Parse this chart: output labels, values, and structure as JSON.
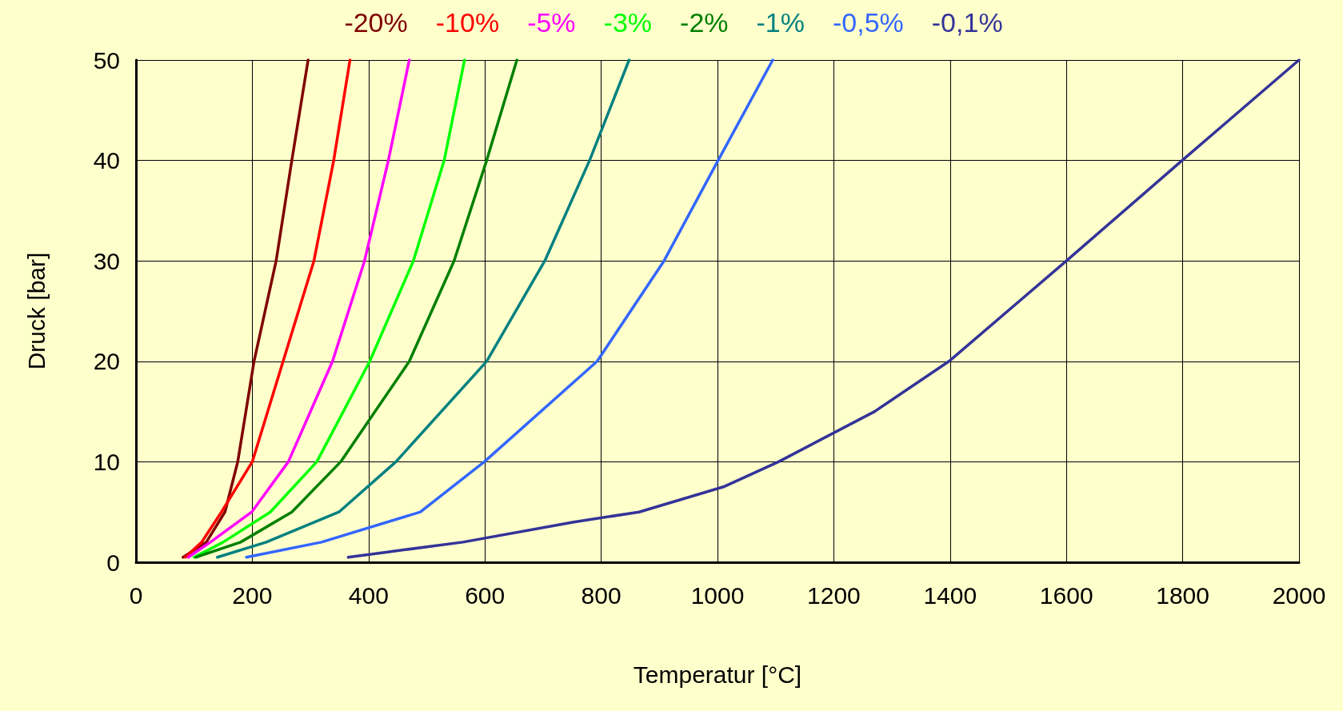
{
  "chart_data": {
    "type": "line",
    "xlabel": "Temperatur [°C]",
    "ylabel": "Druck [bar]",
    "xlim": [
      0,
      2000
    ],
    "xticks": [
      0,
      200,
      400,
      600,
      800,
      1000,
      1200,
      1400,
      1600,
      1800,
      2000
    ],
    "ylim": [
      0,
      50
    ],
    "yticks": [
      0,
      10,
      20,
      30,
      40,
      50
    ],
    "grid": true,
    "legend": "top",
    "marker": "none",
    "line_style": "solid",
    "series": [
      {
        "name": "-20%",
        "color": "#800000",
        "x": [
          81,
          121,
          153,
          175,
          203,
          241,
          268,
          296
        ],
        "values": [
          0.5,
          2,
          5,
          10,
          20,
          30,
          40,
          50
        ]
      },
      {
        "name": "-10%",
        "color": "#ff0000",
        "x": [
          85,
          113,
          147,
          200,
          253,
          306,
          340,
          368
        ],
        "values": [
          0.5,
          2,
          5,
          10,
          20,
          30,
          40,
          50
        ]
      },
      {
        "name": "-5%",
        "color": "#ff00ff",
        "x": [
          90,
          128,
          199,
          262,
          338,
          393,
          434,
          470
        ],
        "values": [
          0.5,
          2,
          5,
          10,
          20,
          30,
          40,
          50
        ]
      },
      {
        "name": "-3%",
        "color": "#00ff00",
        "x": [
          100,
          150,
          231,
          311,
          402,
          477,
          530,
          565
        ],
        "values": [
          0.5,
          2,
          5,
          10,
          20,
          30,
          40,
          50
        ]
      },
      {
        "name": "-2%",
        "color": "#008000",
        "x": [
          103,
          180,
          268,
          352,
          470,
          547,
          603,
          655
        ],
        "values": [
          0.5,
          2,
          5,
          10,
          20,
          30,
          40,
          50
        ]
      },
      {
        "name": "-1%",
        "color": "#008080",
        "x": [
          140,
          224,
          349,
          447,
          603,
          703,
          780,
          848
        ],
        "values": [
          0.5,
          2,
          5,
          10,
          20,
          30,
          40,
          50
        ]
      },
      {
        "name": "-0,5%",
        "color": "#3366ff",
        "x": [
          190,
          319,
          489,
          599,
          793,
          908,
          1001,
          1095
        ],
        "values": [
          0.5,
          2,
          5,
          10,
          20,
          30,
          40,
          50
        ]
      },
      {
        "name": "-0,1%",
        "color": "#333399",
        "x": [
          365,
          430,
          562,
          753,
          865,
          1010,
          1105,
          1270,
          1398,
          1600,
          1799,
          2000
        ],
        "values": [
          0.5,
          1,
          2,
          4,
          5,
          7.5,
          10,
          15,
          20,
          30,
          40,
          50
        ]
      }
    ]
  }
}
